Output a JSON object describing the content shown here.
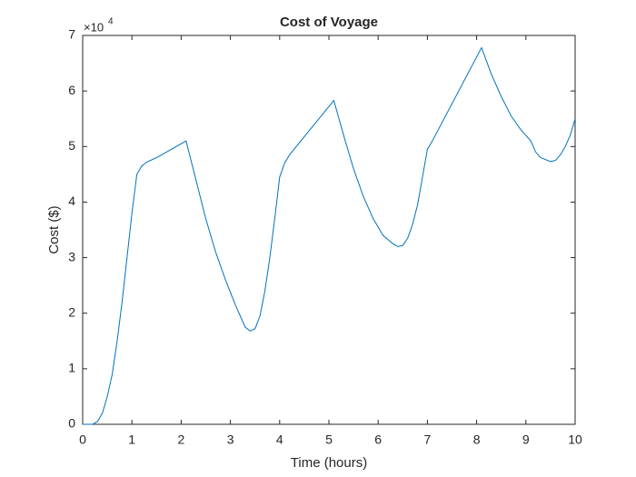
{
  "chart_data": {
    "type": "line",
    "title": "Cost of Voyage",
    "xlabel": "Time (hours)",
    "ylabel": "Cost ($)",
    "y_multiplier_base": "×10",
    "y_multiplier_exponent": "4",
    "x": [
      0,
      0.2,
      0.3,
      0.4,
      0.5,
      0.6,
      0.7,
      0.8,
      0.9,
      1.0,
      1.1,
      1.2,
      1.3,
      1.5,
      2.1,
      2.3,
      2.5,
      2.7,
      2.9,
      3.1,
      3.3,
      3.4,
      3.5,
      3.6,
      3.7,
      3.8,
      3.9,
      4.0,
      4.1,
      4.2,
      5.1,
      5.3,
      5.5,
      5.7,
      5.9,
      6.1,
      6.3,
      6.4,
      6.5,
      6.6,
      6.7,
      6.8,
      6.9,
      7.0,
      7.1,
      8.1,
      8.3,
      8.5,
      8.7,
      8.9,
      9.0,
      9.1,
      9.2,
      9.3,
      9.5,
      9.6,
      9.7,
      9.8,
      9.9,
      10
    ],
    "series": [
      {
        "name": "Cost",
        "color": "#0072bd",
        "values": [
          0,
          0,
          0.05,
          0.2,
          0.5,
          0.9,
          1.5,
          2.2,
          3.0,
          3.8,
          4.5,
          4.65,
          4.72,
          4.8,
          5.1,
          4.4,
          3.7,
          3.1,
          2.6,
          2.15,
          1.75,
          1.68,
          1.72,
          1.95,
          2.4,
          3.0,
          3.7,
          4.45,
          4.7,
          4.85,
          5.83,
          5.2,
          4.6,
          4.1,
          3.7,
          3.4,
          3.25,
          3.2,
          3.22,
          3.35,
          3.6,
          3.95,
          4.45,
          4.95,
          5.1,
          6.78,
          6.3,
          5.9,
          5.55,
          5.3,
          5.2,
          5.1,
          4.9,
          4.8,
          4.73,
          4.75,
          4.85,
          5.0,
          5.2,
          5.5
        ]
      }
    ],
    "xlim": [
      0,
      10
    ],
    "xticks": [
      0,
      1,
      2,
      3,
      4,
      5,
      6,
      7,
      8,
      9,
      10
    ],
    "ylim": [
      0,
      7
    ],
    "yticks": [
      0,
      1,
      2,
      3,
      4,
      5,
      6,
      7
    ],
    "grid": false
  }
}
